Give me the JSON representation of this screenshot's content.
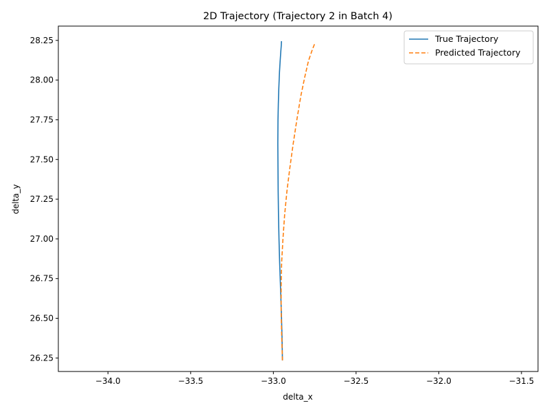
{
  "chart_data": {
    "type": "line",
    "title": "2D Trajectory (Trajectory 2 in Batch 4)",
    "xlabel": "delta_x",
    "ylabel": "delta_y",
    "xlim": [
      -34.3,
      -31.4
    ],
    "ylim": [
      26.165,
      28.34
    ],
    "x_ticks": [
      -34.0,
      -33.5,
      -33.0,
      -32.5,
      -32.0,
      -31.5
    ],
    "x_tick_labels": [
      "−34.0",
      "−33.5",
      "−33.0",
      "−32.5",
      "−32.0",
      "−31.5"
    ],
    "y_ticks": [
      26.25,
      26.5,
      26.75,
      27.0,
      27.25,
      27.5,
      27.75,
      28.0,
      28.25
    ],
    "y_tick_labels": [
      "26.25",
      "26.50",
      "26.75",
      "27.00",
      "27.25",
      "27.50",
      "27.75",
      "28.00",
      "28.25"
    ],
    "grid": false,
    "legend_position": "top-right",
    "series": [
      {
        "name": "True Trajectory",
        "color": "#1f77b4",
        "style": "solid",
        "x": [
          -32.945,
          -32.948,
          -32.952,
          -32.957,
          -32.962,
          -32.966,
          -32.969,
          -32.971,
          -32.972,
          -32.973,
          -32.972,
          -32.97,
          -32.967,
          -32.963,
          -32.959,
          -32.955,
          -32.952,
          -32.951
        ],
        "y": [
          26.235,
          26.4,
          26.55,
          26.7,
          26.85,
          27.0,
          27.15,
          27.3,
          27.45,
          27.6,
          27.75,
          27.85,
          27.95,
          28.05,
          28.12,
          28.18,
          28.22,
          28.245
        ]
      },
      {
        "name": "Predicted Trajectory",
        "color": "#ff7f0e",
        "style": "dashed",
        "x": [
          -32.945,
          -32.95,
          -32.953,
          -32.953,
          -32.95,
          -32.942,
          -32.932,
          -32.918,
          -32.9,
          -32.88,
          -32.858,
          -32.834,
          -32.81,
          -32.788,
          -32.765,
          -32.748
        ],
        "y": [
          26.235,
          26.4,
          26.55,
          26.7,
          26.85,
          27.0,
          27.15,
          27.3,
          27.45,
          27.6,
          27.75,
          27.9,
          28.02,
          28.12,
          28.19,
          28.235
        ]
      }
    ]
  }
}
